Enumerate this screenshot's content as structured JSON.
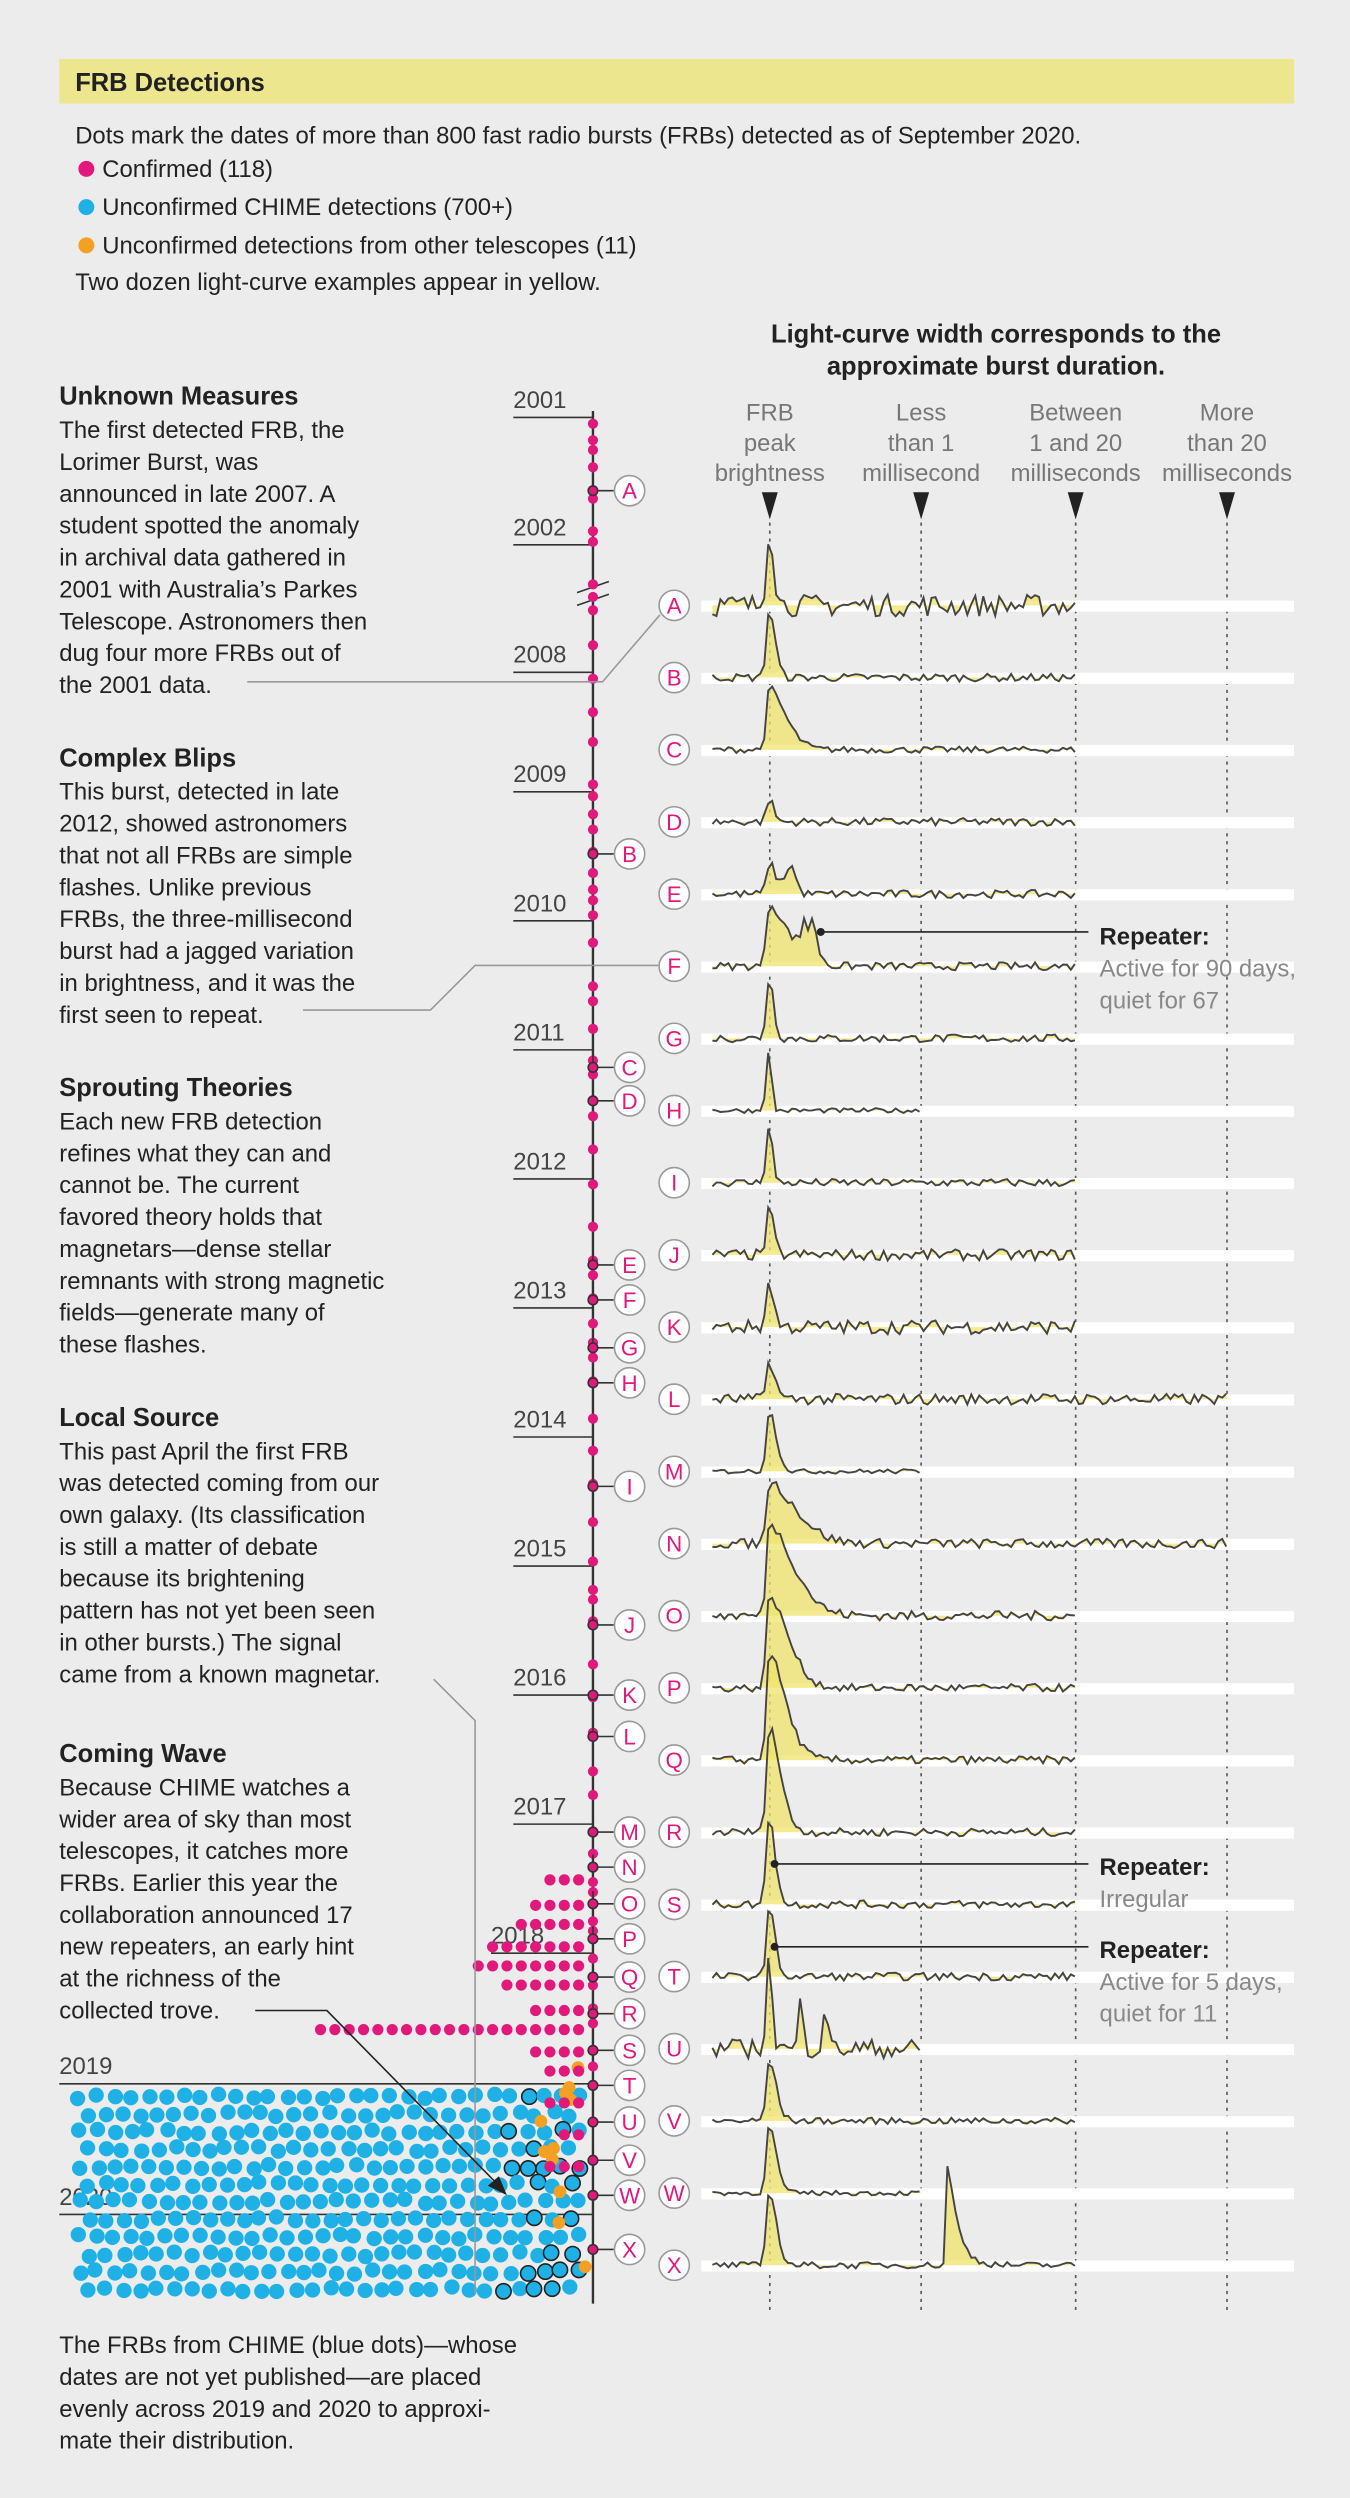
{
  "header": {
    "title": "FRB Detections",
    "intro": "Dots mark the dates of more than 800 fast radio bursts (FRBs) detected as of September 2020.",
    "legend": [
      {
        "label": "Confirmed (118)",
        "color": "#e0197a"
      },
      {
        "label": "Unconfirmed CHIME detections (700+)",
        "color": "#1fb0e6"
      },
      {
        "label": "Unconfirmed detections from other telescopes (11)",
        "color": "#f5a023"
      }
    ],
    "note": "Two dozen light-curve examples appear in yellow."
  },
  "sections": [
    {
      "title": "Unknown Measures",
      "lines": [
        "The first detected FRB, the",
        "Lorimer Burst, was",
        "announced in late 2007. A",
        "student spotted the anomaly",
        "in archival data gathered in",
        "2001 with Australia’s Parkes",
        "Telescope. Astronomers then",
        "dug four more FRBs out of",
        "the 2001 data."
      ]
    },
    {
      "title": "Complex Blips",
      "lines": [
        "This burst, detected in late",
        "2012, showed astronomers",
        "that not all FRBs are simple",
        "flashes. Unlike previous",
        "FRBs, the three-millisecond",
        "burst had a jagged variation",
        "in brightness, and it was the",
        "first seen to repeat."
      ]
    },
    {
      "title": "Sprouting Theories",
      "lines": [
        "Each new FRB detection",
        "refines what they can and",
        "cannot be. The current",
        "favored theory holds that",
        "magnetars—dense stellar",
        "remnants with strong magnetic",
        "fields—generate many of",
        "these flashes."
      ]
    },
    {
      "title": "Local Source",
      "lines": [
        "This past April the first FRB",
        "was detected coming from our",
        "own galaxy. (Its classification",
        "is still a matter of debate",
        "because its brightening",
        "pattern has not yet been seen",
        "in other bursts.) The signal",
        "came from a known magnetar."
      ]
    },
    {
      "title": "Coming Wave",
      "lines": [
        "Because CHIME watches a",
        "wider area of sky than most",
        "telescopes, it catches more",
        "FRBs. Earlier this year the",
        "collaboration announced 17",
        "new repeaters, an early hint",
        "at the richness of the",
        "collected trove."
      ]
    }
  ],
  "footnote": [
    "The FRBs from CHIME (blue dots)—whose",
    "dates are not yet published—are placed",
    "evenly across 2019 and 2020 to approxi-",
    "mate their distribution."
  ],
  "timeline": {
    "years": [
      "2001",
      "2002",
      "2008",
      "2009",
      "2010",
      "2011",
      "2012",
      "2013",
      "2014",
      "2015",
      "2016",
      "2017",
      "2018",
      "2019",
      "2020"
    ]
  },
  "curves": {
    "heading": [
      "Light-curve width corresponds to the",
      "approximate burst duration."
    ],
    "columns": [
      [
        "FRB",
        "peak",
        "brightness"
      ],
      [
        "Less",
        "than 1",
        "millisecond"
      ],
      [
        "Between",
        "1 and 20",
        "milliseconds"
      ],
      [
        "More",
        "than 20",
        "milliseconds"
      ]
    ],
    "labels": [
      "A",
      "B",
      "C",
      "D",
      "E",
      "F",
      "G",
      "H",
      "I",
      "J",
      "K",
      "L",
      "M",
      "N",
      "O",
      "P",
      "Q",
      "R",
      "S",
      "T",
      "U",
      "V",
      "W",
      "X"
    ]
  },
  "callouts": [
    {
      "title": "Repeater:",
      "lines": [
        "Active for 90 days,",
        "quiet for 67"
      ]
    },
    {
      "title": "Repeater:",
      "lines": [
        "Irregular"
      ]
    },
    {
      "title": "Repeater:",
      "lines": [
        "Active for 5 days,",
        "quiet for 11"
      ]
    }
  ]
}
